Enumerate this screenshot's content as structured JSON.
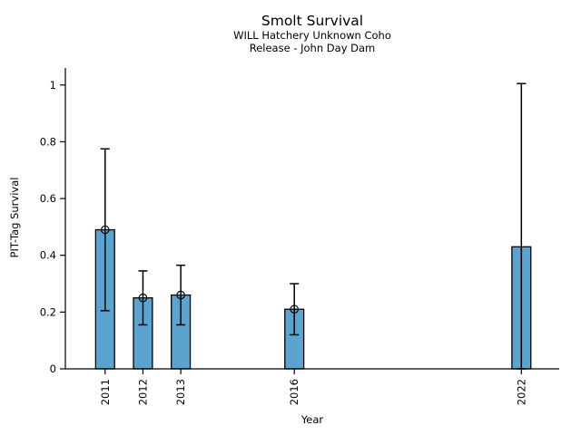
{
  "chart_data": {
    "type": "bar",
    "title": "Smolt Survival",
    "subtitle_line1": "WILL Hatchery Unknown Coho",
    "subtitle_line2": "Release - John Day Dam",
    "xlabel": "Year",
    "ylabel": "PIT-Tag Survival",
    "categories": [
      "2011",
      "2012",
      "2013",
      "2016",
      "2022"
    ],
    "x": [
      2011,
      2012,
      2013,
      2016,
      2022
    ],
    "values": [
      0.49,
      0.25,
      0.26,
      0.21,
      0.43
    ],
    "error_low": [
      0.205,
      0.155,
      0.155,
      0.12,
      0.0
    ],
    "error_high": [
      0.775,
      0.345,
      0.365,
      0.3,
      1.005
    ],
    "point_markers": [
      true,
      true,
      true,
      true,
      false
    ],
    "ytick_values": [
      0,
      0.2,
      0.4,
      0.6,
      0.8,
      1
    ],
    "ytick_labels": [
      "0",
      "0.2",
      "0.4",
      "0.6",
      "0.8",
      "1"
    ],
    "xlim": [
      2009.95,
      2023.0
    ],
    "ylim": [
      0,
      1.06
    ],
    "bar_width_years": 0.5,
    "grid": false,
    "legend_position": "none",
    "bar_color": "#5BA4CF",
    "edge_color": "#000000",
    "error_color": "#000000",
    "text_color": "#000000",
    "background_color": "#FFFFFF"
  }
}
